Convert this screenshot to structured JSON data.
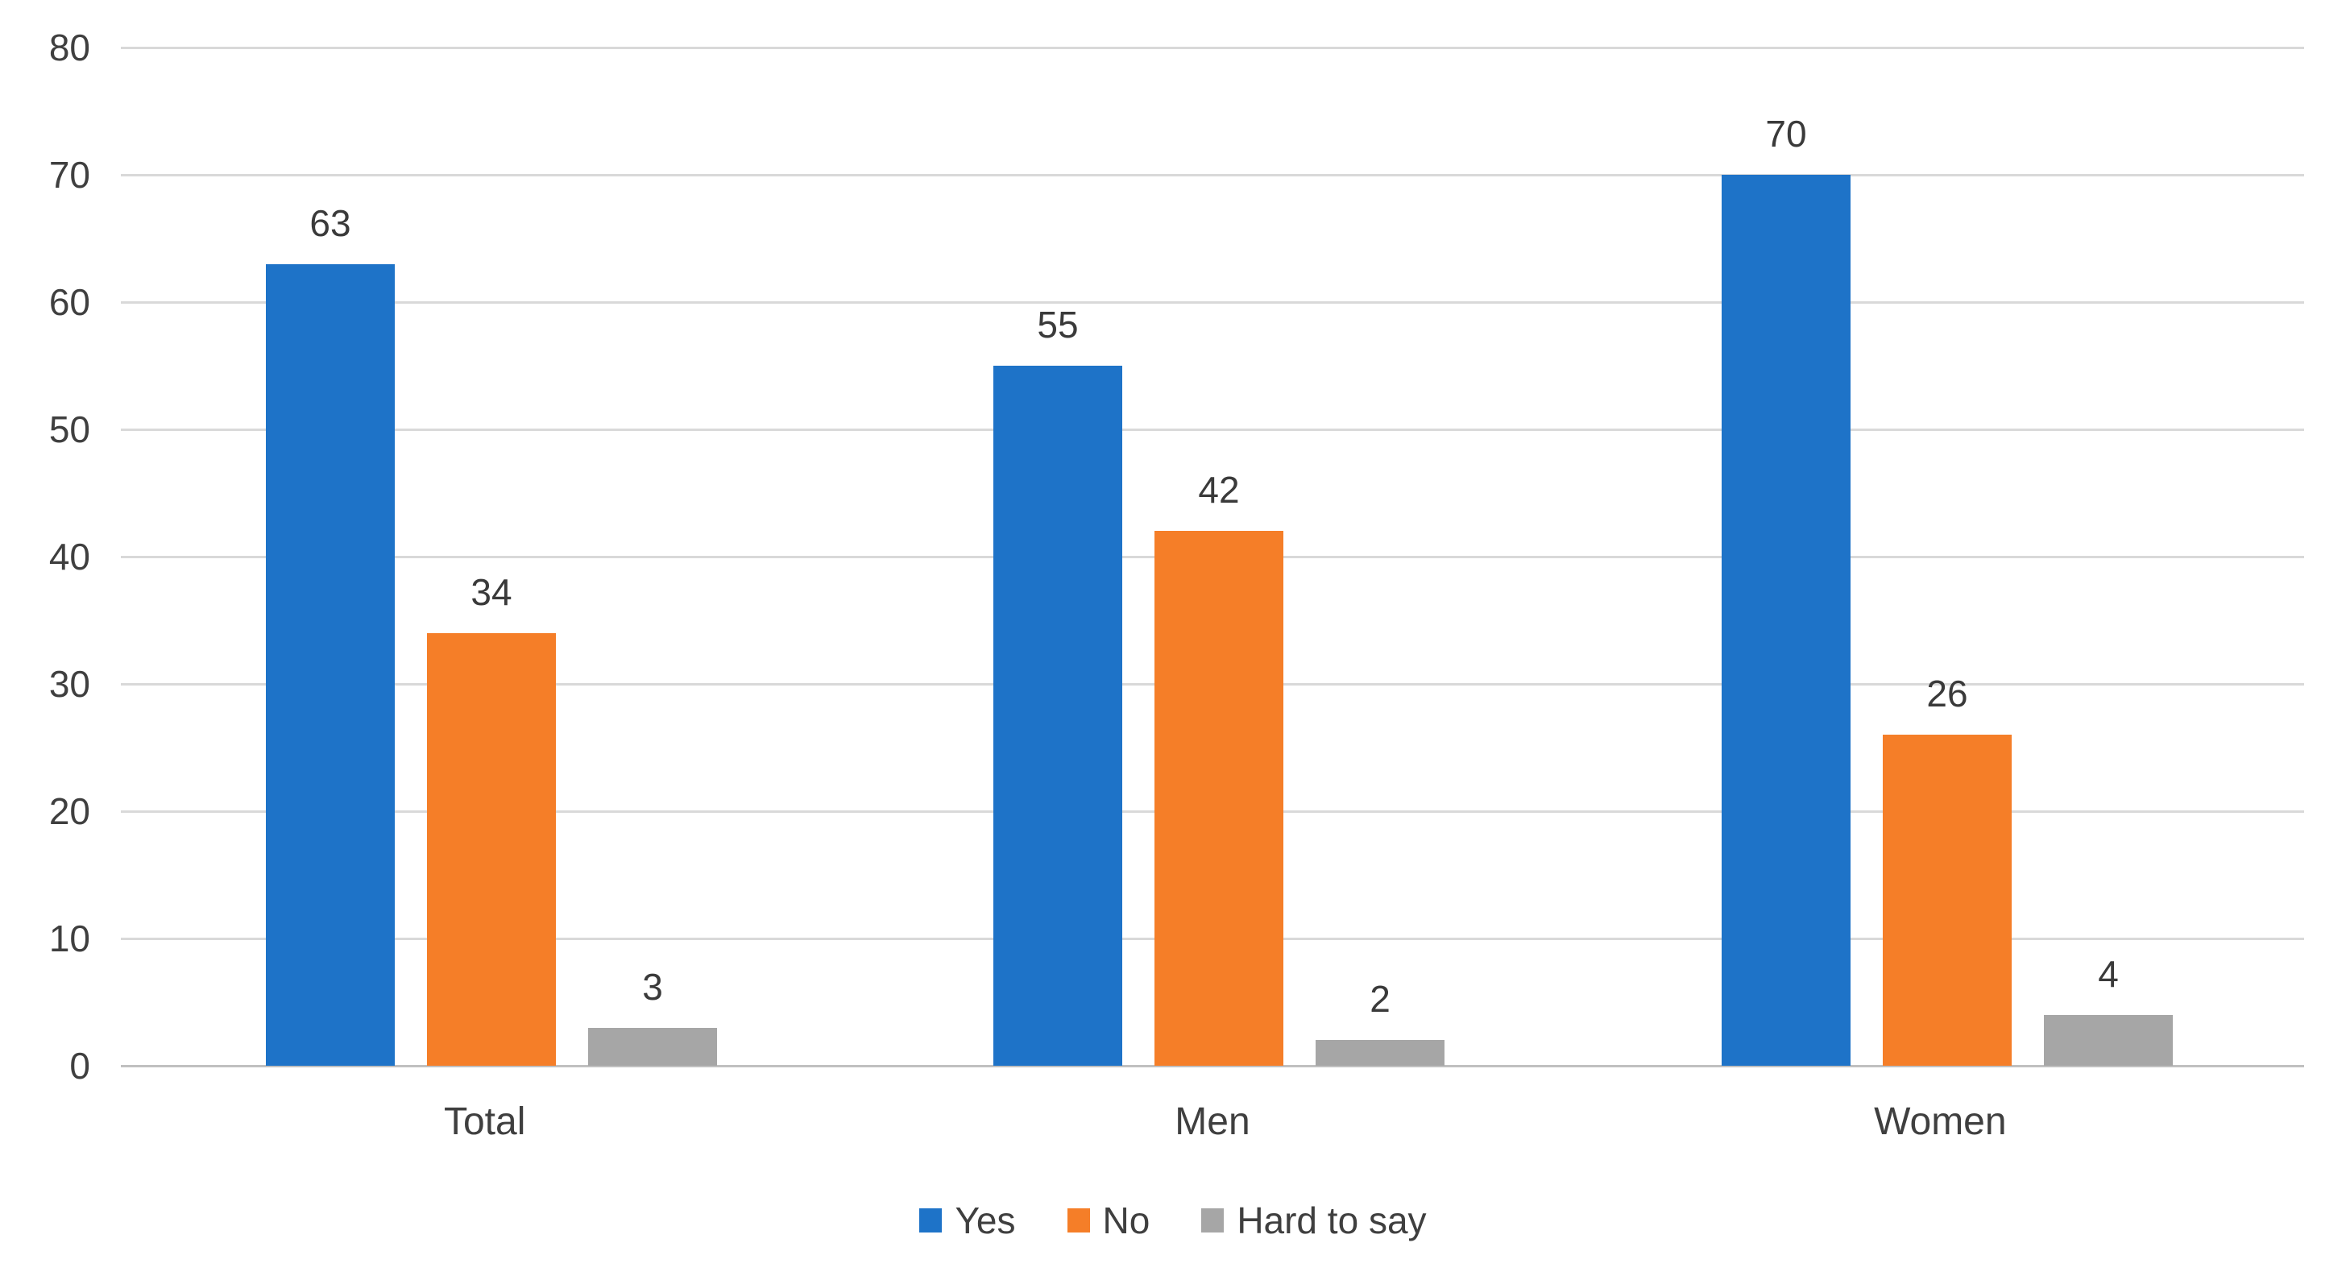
{
  "chart_data": {
    "type": "bar",
    "title": "",
    "categories": [
      "Total",
      "Men",
      "Women"
    ],
    "series": [
      {
        "name": "Yes",
        "color": "#1E73C8",
        "values": [
          63,
          55,
          70
        ]
      },
      {
        "name": "No",
        "color": "#F57E28",
        "values": [
          34,
          42,
          26
        ]
      },
      {
        "name": "Hard to say",
        "color": "#A6A6A6",
        "values": [
          3,
          2,
          4
        ]
      }
    ],
    "ylim": [
      0,
      80
    ],
    "ytick_step": 10,
    "ytick_labels": [
      "0",
      "10",
      "20",
      "30",
      "40",
      "50",
      "60",
      "70",
      "80"
    ],
    "grid": true,
    "data_labels": true,
    "legend_position": "bottom",
    "gridline_color": "#D9D9D9",
    "axis_line_color": "#C0C0C0",
    "text_color": "#3F3F3F",
    "background_color": "#FFFFFF"
  }
}
